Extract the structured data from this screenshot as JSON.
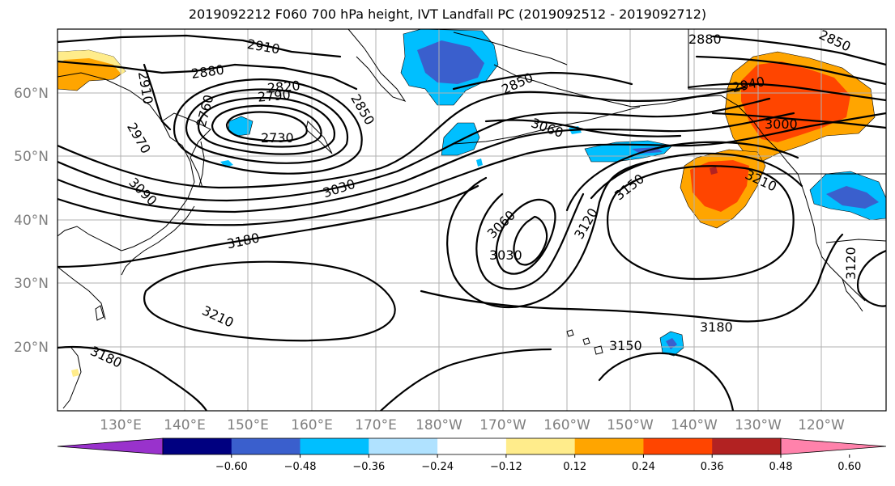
{
  "title": "2019092212 F060 700 hPa height, IVT Landfall PC (2019092512 - 2019092712)",
  "colors": {
    "purple": "#9932cc",
    "navy": "#000080",
    "royal_blue": "#3a5fcd",
    "deep_sky_blue": "#00bfff",
    "light_blue": "#b0e2ff",
    "white": "#ffffff",
    "khaki": "#ffec8b",
    "orange": "#ffa500",
    "orange_red": "#ff4500",
    "firebrick": "#b22222",
    "pink": "#ff82ab"
  },
  "map": {
    "lat_labels": [
      "60°N",
      "50°N",
      "40°N",
      "30°N",
      "20°N"
    ],
    "lon_labels": [
      "130°E",
      "140°E",
      "150°E",
      "160°E",
      "170°E",
      "180°W",
      "170°W",
      "160°W",
      "150°W",
      "140°W",
      "130°W",
      "120°W"
    ],
    "contour_labels": [
      "2910",
      "2880",
      "2910",
      "2820",
      "2790",
      "2760",
      "2850",
      "2850",
      "2730",
      "2970",
      "3090",
      "3030",
      "3060",
      "2880",
      "2850",
      "2940",
      "3000",
      "3060",
      "3150",
      "3120",
      "3210",
      "3180",
      "3030",
      "3210",
      "3180",
      "3180",
      "3150",
      "3120"
    ],
    "layers": [
      "700 hPa height contours",
      "IVT landfall PC shading",
      "coastlines"
    ]
  },
  "colorbar": {
    "tick_labels": [
      "−0.60",
      "−0.48",
      "−0.36",
      "−0.24",
      "−0.12",
      "0.12",
      "0.24",
      "0.36",
      "0.48",
      "0.60"
    ],
    "levels": [
      -0.72,
      -0.6,
      -0.48,
      -0.36,
      -0.24,
      -0.12,
      0.12,
      0.24,
      0.36,
      0.48,
      0.6,
      0.72
    ],
    "bin_colors": [
      "#9932cc",
      "#000080",
      "#3a5fcd",
      "#00bfff",
      "#b0e2ff",
      "#ffffff",
      "#ffec8b",
      "#ffa500",
      "#ff4500",
      "#b22222",
      "#ff82ab"
    ],
    "extend": "both"
  }
}
